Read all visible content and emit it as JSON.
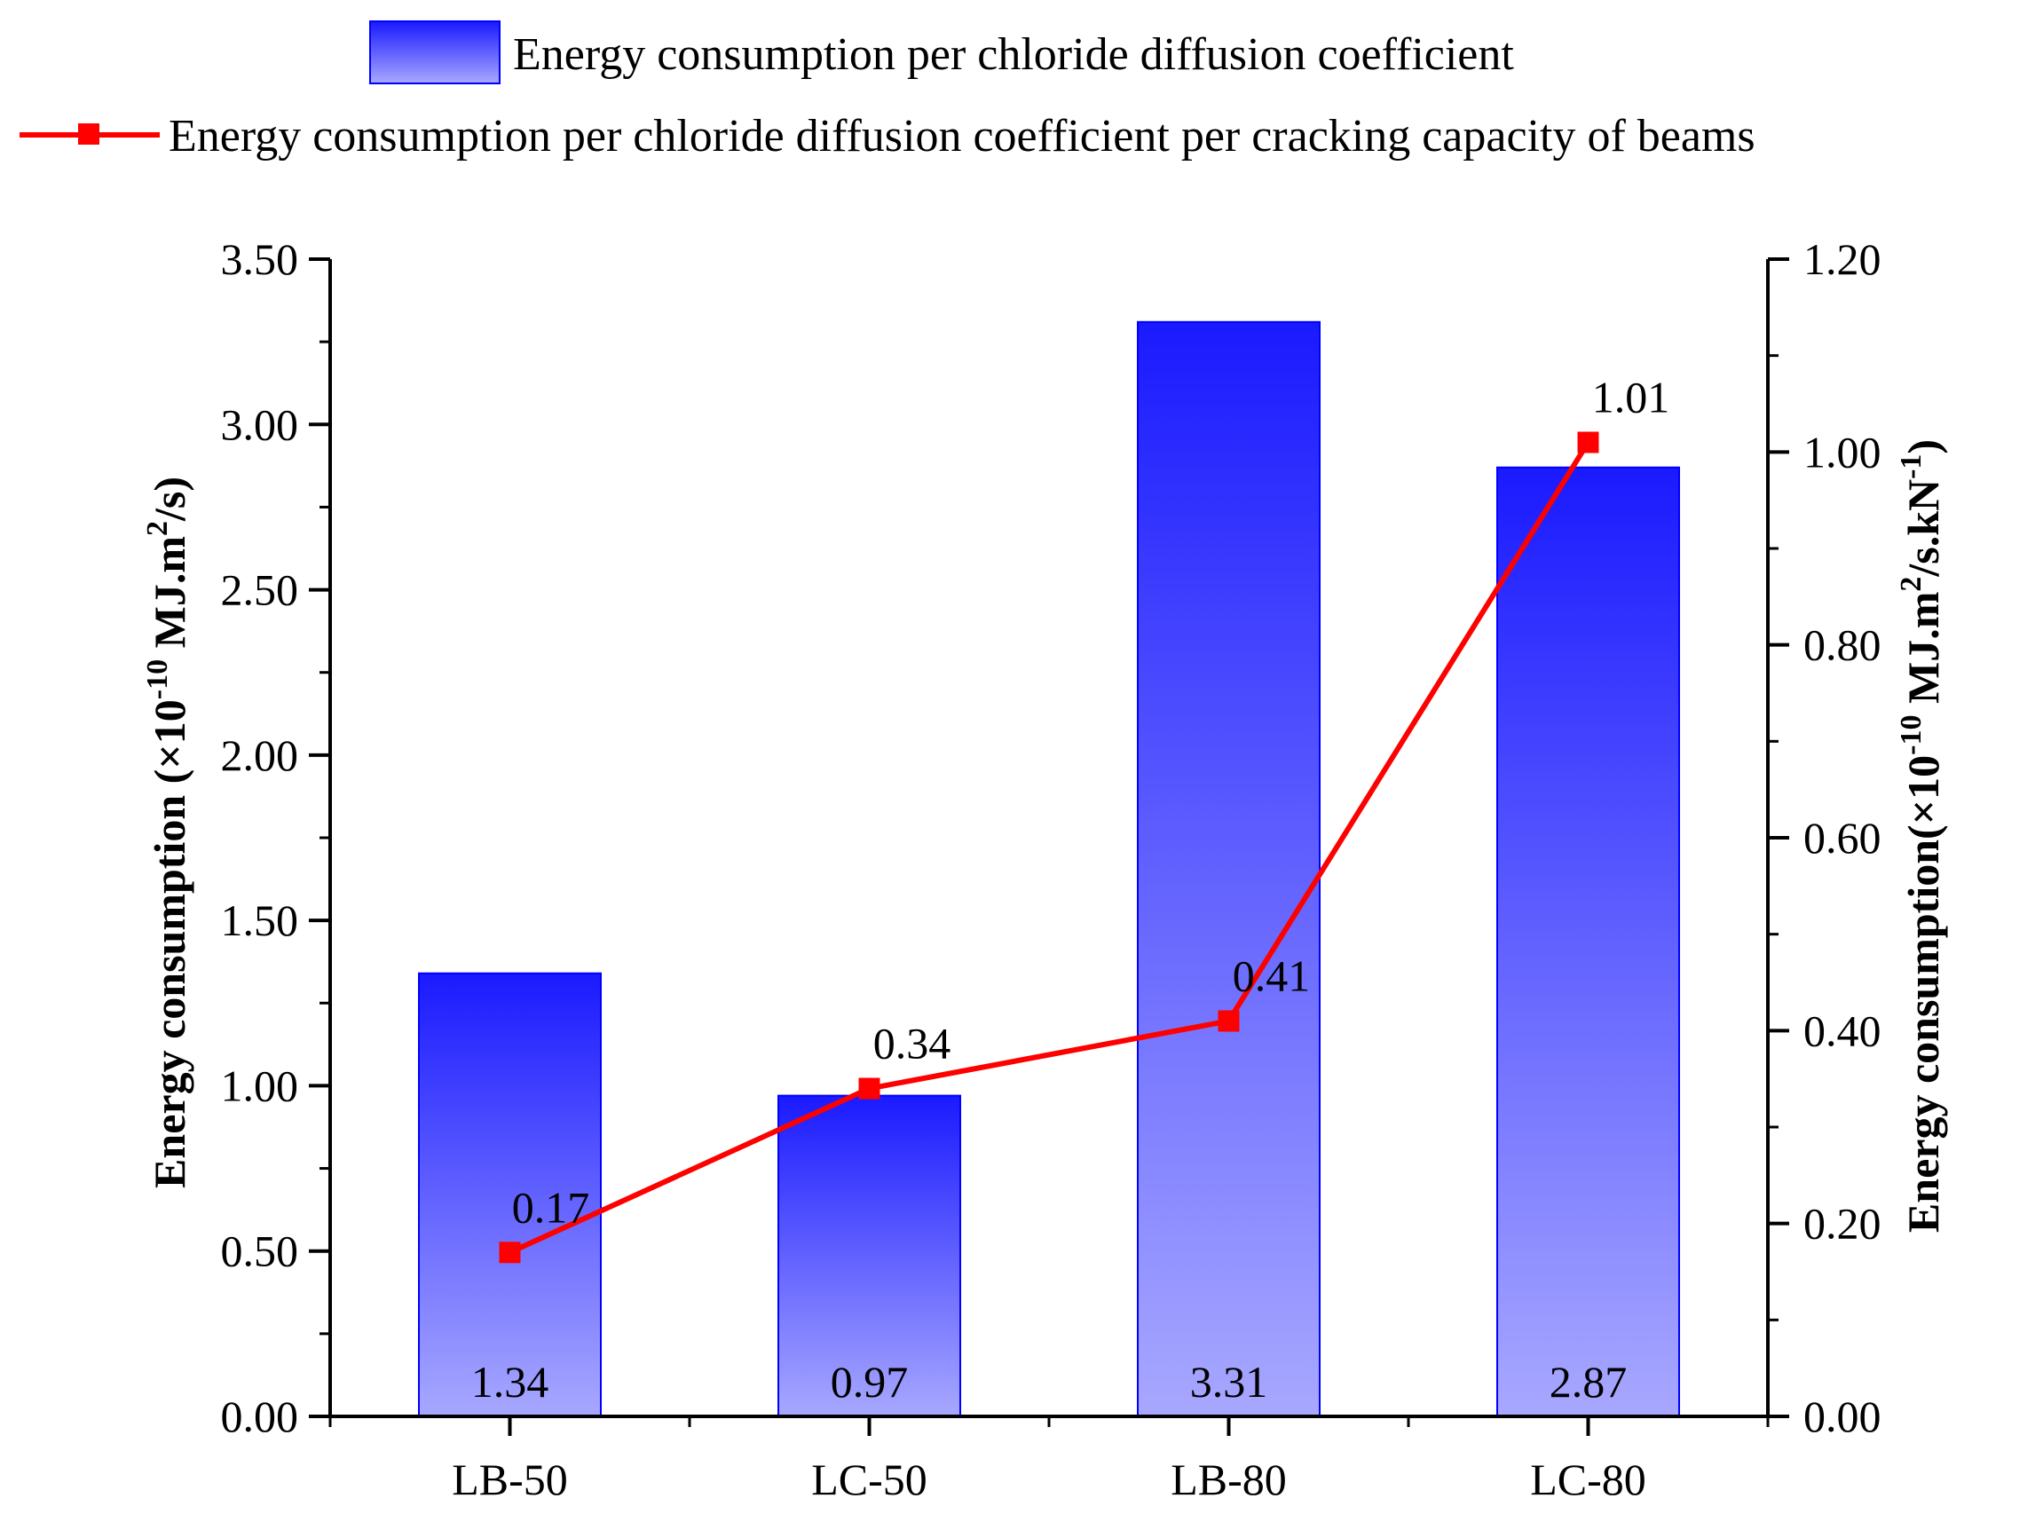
{
  "chart_data": {
    "type": "bar",
    "categories": [
      "LB-50",
      "LC-50",
      "LB-80",
      "LC-80"
    ],
    "series": [
      {
        "name": "Energy consumption per chloride diffusion coefficient",
        "kind": "bar",
        "axis": "left",
        "values": [
          1.34,
          0.97,
          3.31,
          2.87
        ],
        "labels": [
          "1.34",
          "0.97",
          "3.31",
          "2.87"
        ],
        "color": "#1a1aff",
        "color_light": "#a8a8ff"
      },
      {
        "name": "Energy consumption per chloride diffusion coefficient per cracking capacity of beams",
        "kind": "line",
        "axis": "right",
        "values": [
          0.17,
          0.34,
          0.41,
          1.01
        ],
        "labels": [
          "0.17",
          "0.34",
          "0.41",
          "1.01"
        ],
        "color": "#ff0000"
      }
    ],
    "y_left": {
      "label_main": "Energy consumption (×10",
      "label_exp": "-10",
      "label_units": " MJ.m",
      "label_sq": "2",
      "label_tail": "/s)",
      "ylim": [
        0,
        3.5
      ],
      "ticks": [
        "0.00",
        "0.50",
        "1.00",
        "1.50",
        "2.00",
        "2.50",
        "3.00",
        "3.50"
      ]
    },
    "y_right": {
      "label_main": "Energy consumption(×10",
      "label_exp": "-10",
      "label_units": " MJ.m",
      "label_sq": "2",
      "label_mid": "/s.kN",
      "label_inv": "-1",
      "label_tail": ")",
      "ylim": [
        0,
        1.2
      ],
      "ticks": [
        "0.00",
        "0.20",
        "0.40",
        "0.60",
        "0.80",
        "1.00",
        "1.20"
      ]
    },
    "legend_position": "top-center"
  }
}
